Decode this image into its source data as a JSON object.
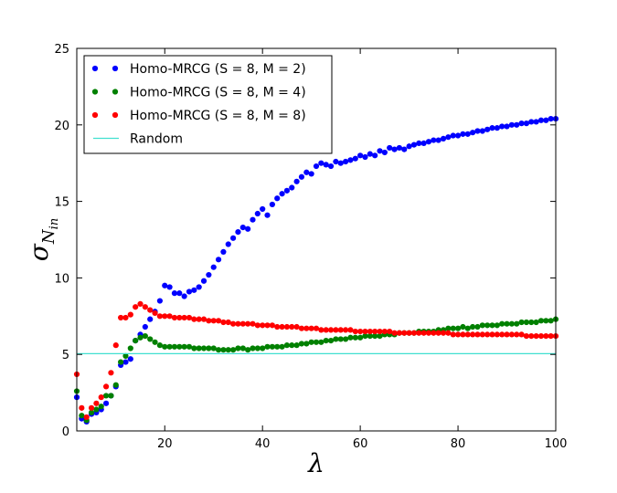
{
  "chart_data": {
    "type": "scatter",
    "xlabel": "λ",
    "ylabel": "σ",
    "ylabel_sub": "N",
    "ylabel_subsub": "in",
    "xlim": [
      2,
      100
    ],
    "ylim": [
      0,
      25
    ],
    "xticks": [
      20,
      40,
      60,
      80,
      100
    ],
    "yticks": [
      0,
      5,
      10,
      15,
      20,
      25
    ],
    "legend_position": "top-left",
    "grid": false,
    "series": [
      {
        "name": "Homo-MRCG (S = 8, M = 2)",
        "color": "#0000ff",
        "kind": "scatter",
        "x": [
          2,
          3,
          4,
          5,
          6,
          7,
          8,
          9,
          10,
          11,
          12,
          13,
          14,
          15,
          16,
          17,
          18,
          19,
          20,
          21,
          22,
          23,
          24,
          25,
          26,
          27,
          28,
          29,
          30,
          31,
          32,
          33,
          34,
          35,
          36,
          37,
          38,
          39,
          40,
          41,
          42,
          43,
          44,
          45,
          46,
          47,
          48,
          49,
          50,
          51,
          52,
          53,
          54,
          55,
          56,
          57,
          58,
          59,
          60,
          61,
          62,
          63,
          64,
          65,
          66,
          67,
          68,
          69,
          70,
          71,
          72,
          73,
          74,
          75,
          76,
          77,
          78,
          79,
          80,
          81,
          82,
          83,
          84,
          85,
          86,
          87,
          88,
          89,
          90,
          91,
          92,
          93,
          94,
          95,
          96,
          97,
          98,
          99,
          100
        ],
        "values": [
          2.2,
          0.8,
          0.6,
          1.1,
          1.2,
          1.4,
          1.8,
          2.3,
          2.9,
          4.3,
          4.5,
          4.7,
          5.9,
          6.3,
          6.8,
          7.3,
          7.8,
          8.5,
          9.5,
          9.4,
          9.0,
          9.0,
          8.8,
          9.1,
          9.2,
          9.4,
          9.8,
          10.2,
          10.7,
          11.2,
          11.7,
          12.2,
          12.6,
          13.0,
          13.3,
          13.2,
          13.8,
          14.2,
          14.5,
          14.1,
          14.8,
          15.2,
          15.5,
          15.7,
          15.9,
          16.3,
          16.6,
          16.9,
          16.8,
          17.3,
          17.5,
          17.4,
          17.3,
          17.6,
          17.5,
          17.6,
          17.7,
          17.8,
          18.0,
          17.9,
          18.1,
          18.0,
          18.3,
          18.2,
          18.5,
          18.4,
          18.5,
          18.4,
          18.6,
          18.7,
          18.8,
          18.8,
          18.9,
          19.0,
          19.0,
          19.1,
          19.2,
          19.3,
          19.3,
          19.4,
          19.4,
          19.5,
          19.6,
          19.6,
          19.7,
          19.8,
          19.8,
          19.9,
          19.9,
          20.0,
          20.0,
          20.1,
          20.1,
          20.2,
          20.2,
          20.3,
          20.3,
          20.4,
          20.4
        ]
      },
      {
        "name": "Homo-MRCG (S = 8, M = 4)",
        "color": "#008000",
        "kind": "scatter",
        "x": [
          2,
          3,
          4,
          5,
          6,
          7,
          8,
          9,
          10,
          11,
          12,
          13,
          14,
          15,
          16,
          17,
          18,
          19,
          20,
          21,
          22,
          23,
          24,
          25,
          26,
          27,
          28,
          29,
          30,
          31,
          32,
          33,
          34,
          35,
          36,
          37,
          38,
          39,
          40,
          41,
          42,
          43,
          44,
          45,
          46,
          47,
          48,
          49,
          50,
          51,
          52,
          53,
          54,
          55,
          56,
          57,
          58,
          59,
          60,
          61,
          62,
          63,
          64,
          65,
          66,
          67,
          68,
          69,
          70,
          71,
          72,
          73,
          74,
          75,
          76,
          77,
          78,
          79,
          80,
          81,
          82,
          83,
          84,
          85,
          86,
          87,
          88,
          89,
          90,
          91,
          92,
          93,
          94,
          95,
          96,
          97,
          98,
          99,
          100
        ],
        "values": [
          2.6,
          1.0,
          0.7,
          1.2,
          1.4,
          1.6,
          2.3,
          2.3,
          3.0,
          4.5,
          4.9,
          5.4,
          5.9,
          6.1,
          6.2,
          6.0,
          5.8,
          5.6,
          5.5,
          5.5,
          5.5,
          5.5,
          5.5,
          5.5,
          5.4,
          5.4,
          5.4,
          5.4,
          5.4,
          5.3,
          5.3,
          5.3,
          5.3,
          5.4,
          5.4,
          5.3,
          5.4,
          5.4,
          5.4,
          5.5,
          5.5,
          5.5,
          5.5,
          5.6,
          5.6,
          5.6,
          5.7,
          5.7,
          5.8,
          5.8,
          5.8,
          5.9,
          5.9,
          6.0,
          6.0,
          6.0,
          6.1,
          6.1,
          6.1,
          6.2,
          6.2,
          6.2,
          6.2,
          6.3,
          6.3,
          6.3,
          6.4,
          6.4,
          6.4,
          6.4,
          6.5,
          6.5,
          6.5,
          6.5,
          6.6,
          6.6,
          6.7,
          6.7,
          6.7,
          6.8,
          6.7,
          6.8,
          6.8,
          6.9,
          6.9,
          6.9,
          6.9,
          7.0,
          7.0,
          7.0,
          7.0,
          7.1,
          7.1,
          7.1,
          7.1,
          7.2,
          7.2,
          7.2,
          7.3
        ]
      },
      {
        "name": "Homo-MRCG (S = 8, M = 8)",
        "color": "#ff0000",
        "kind": "scatter",
        "x": [
          2,
          3,
          4,
          5,
          6,
          7,
          8,
          9,
          10,
          11,
          12,
          13,
          14,
          15,
          16,
          17,
          18,
          19,
          20,
          21,
          22,
          23,
          24,
          25,
          26,
          27,
          28,
          29,
          30,
          31,
          32,
          33,
          34,
          35,
          36,
          37,
          38,
          39,
          40,
          41,
          42,
          43,
          44,
          45,
          46,
          47,
          48,
          49,
          50,
          51,
          52,
          53,
          54,
          55,
          56,
          57,
          58,
          59,
          60,
          61,
          62,
          63,
          64,
          65,
          66,
          67,
          68,
          69,
          70,
          71,
          72,
          73,
          74,
          75,
          76,
          77,
          78,
          79,
          80,
          81,
          82,
          83,
          84,
          85,
          86,
          87,
          88,
          89,
          90,
          91,
          92,
          93,
          94,
          95,
          96,
          97,
          98,
          99,
          100
        ],
        "values": [
          3.7,
          1.5,
          0.9,
          1.5,
          1.8,
          2.2,
          2.9,
          3.8,
          5.6,
          7.4,
          7.4,
          7.6,
          8.1,
          8.3,
          8.1,
          7.9,
          7.7,
          7.5,
          7.5,
          7.5,
          7.4,
          7.4,
          7.4,
          7.4,
          7.3,
          7.3,
          7.3,
          7.2,
          7.2,
          7.2,
          7.1,
          7.1,
          7.0,
          7.0,
          7.0,
          7.0,
          7.0,
          6.9,
          6.9,
          6.9,
          6.9,
          6.8,
          6.8,
          6.8,
          6.8,
          6.8,
          6.7,
          6.7,
          6.7,
          6.7,
          6.6,
          6.6,
          6.6,
          6.6,
          6.6,
          6.6,
          6.6,
          6.5,
          6.5,
          6.5,
          6.5,
          6.5,
          6.5,
          6.5,
          6.5,
          6.4,
          6.4,
          6.4,
          6.4,
          6.4,
          6.4,
          6.4,
          6.4,
          6.4,
          6.4,
          6.4,
          6.4,
          6.3,
          6.3,
          6.3,
          6.3,
          6.3,
          6.3,
          6.3,
          6.3,
          6.3,
          6.3,
          6.3,
          6.3,
          6.3,
          6.3,
          6.3,
          6.2,
          6.2,
          6.2,
          6.2,
          6.2,
          6.2,
          6.2
        ]
      },
      {
        "name": "Random",
        "color": "#40e0d0",
        "kind": "line",
        "x": [
          2,
          100
        ],
        "values": [
          5.05,
          5.05
        ]
      }
    ]
  }
}
